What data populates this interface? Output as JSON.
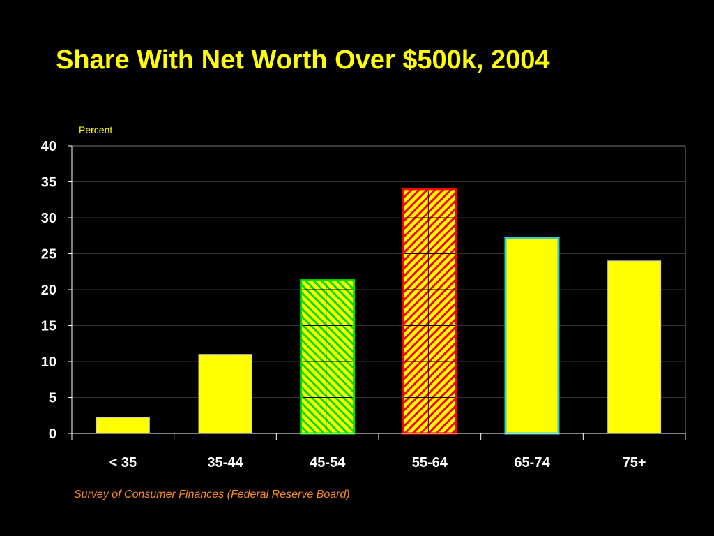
{
  "slide": {
    "title": "Share With Net Worth Over $500k, 2004",
    "source": "Survey of Consumer Finances (Federal Reserve Board)"
  },
  "chart_data": {
    "type": "bar",
    "title": "Share With Net Worth Over $500k, 2004",
    "ylabel": "Percent",
    "xlabel": "",
    "ylim": [
      0,
      40
    ],
    "yticks": [
      0,
      5,
      10,
      15,
      20,
      25,
      30,
      35,
      40
    ],
    "grid": true,
    "legend": "none",
    "categories": [
      "< 35",
      "35-44",
      "45-54",
      "55-64",
      "65-74",
      "75+"
    ],
    "values": [
      2.2,
      11.0,
      21.3,
      34.0,
      27.2,
      24.0
    ],
    "bar_styles": [
      {
        "fill": "#FFFF00",
        "outline": "#C8C8C8",
        "pattern": "none"
      },
      {
        "fill": "#FFFF00",
        "outline": "#C8C8C8",
        "pattern": "none"
      },
      {
        "fill": "#FFFF00",
        "outline": "#00E000",
        "pattern": "diagonal-green"
      },
      {
        "fill": "#FFFF00",
        "outline": "#FF0000",
        "pattern": "diagonal-red"
      },
      {
        "fill": "#FFFF00",
        "outline": "#33CCCC",
        "pattern": "none"
      },
      {
        "fill": "#FFFF00",
        "outline": "#C8C8C8",
        "pattern": "none"
      }
    ],
    "colors": {
      "background": "#000000",
      "title": "#FFFF00",
      "ylabel": "#FFFF00",
      "axis_text": "#FFFFFF",
      "axis_line": "#FFFFFF",
      "gridline": "#333333",
      "source": "#FF8C1A"
    }
  }
}
